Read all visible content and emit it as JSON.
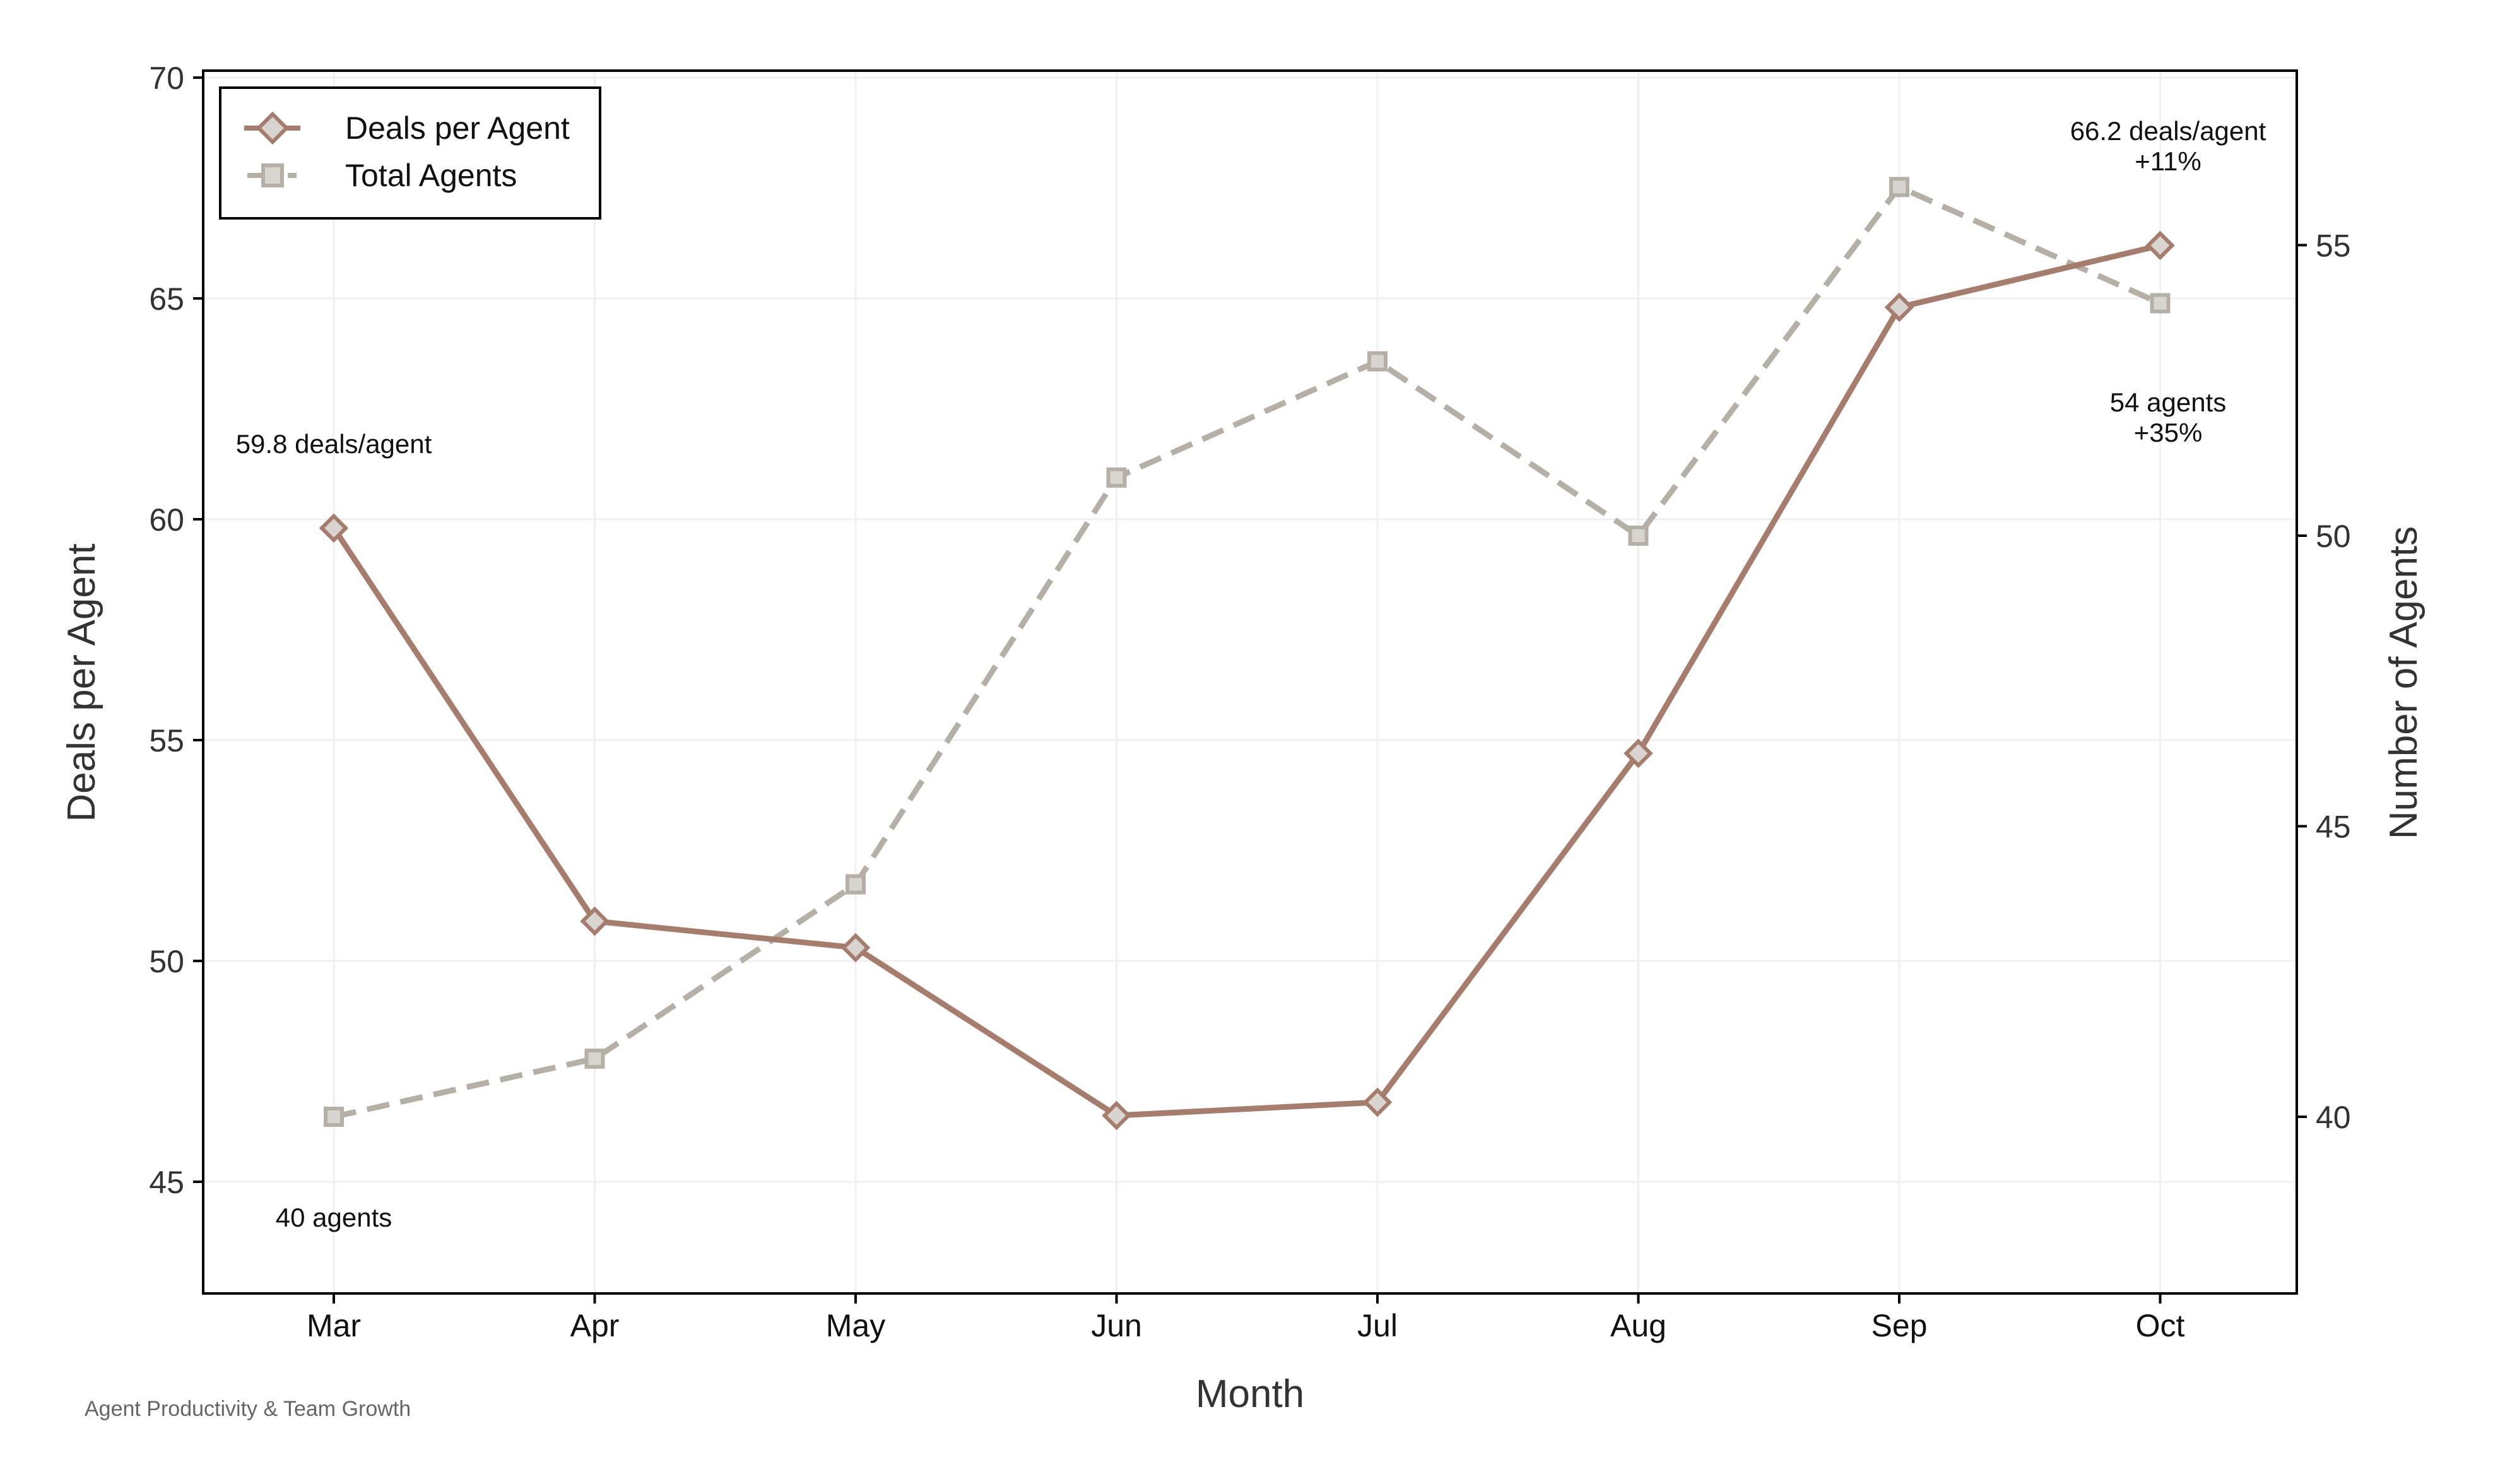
{
  "chart_data": {
    "type": "line",
    "title": "Agent Productivity & Team Growth",
    "xlabel": "Month",
    "ylabel": "Deals per Agent",
    "y2label": "Number of Agents",
    "categories": [
      "Mar",
      "Apr",
      "May",
      "Jun",
      "Jul",
      "Aug",
      "Sep",
      "Oct"
    ],
    "series": [
      {
        "name": "Deals per Agent",
        "axis": "left",
        "values": [
          59.8,
          50.9,
          50.3,
          46.5,
          46.8,
          54.7,
          64.8,
          66.2
        ],
        "color": "#a67c6d",
        "marker": "diamond",
        "line_style": "solid"
      },
      {
        "name": "Total Agents",
        "axis": "right",
        "values": [
          40,
          41,
          44,
          51,
          53,
          50,
          56,
          54
        ],
        "color": "#b5afa5",
        "marker": "square",
        "line_style": "dashed"
      }
    ],
    "ylim": [
      42.5,
      70.2
    ],
    "y2lim": [
      37.0,
      58.0
    ],
    "yticks": [
      45,
      50,
      55,
      60,
      65,
      70
    ],
    "y2ticks": [
      40,
      45,
      50,
      55
    ],
    "grid": true,
    "legend_position": "upper left",
    "annotations": [
      {
        "text": "59.8 deals/agent",
        "x": "Mar",
        "series": "Deals per Agent"
      },
      {
        "text": "40 agents",
        "x": "Mar",
        "series": "Total Agents"
      },
      {
        "text": "66.2 deals/agent",
        "sub": "+11%",
        "x": "Oct",
        "series": "Deals per Agent"
      },
      {
        "text": "54 agents",
        "sub": "+35%",
        "x": "Oct",
        "series": "Total Agents"
      }
    ]
  },
  "labels": {
    "xlabel": "Month",
    "ylabel": "Deals per Agent",
    "y2label": "Number of Agents",
    "caption": "Agent Productivity & Team Growth",
    "legend_deals": "Deals per Agent",
    "legend_agents": "Total Agents",
    "annot_start_deals": "59.8 deals/agent",
    "annot_start_agents": "40 agents",
    "annot_end_deals": "66.2 deals/agent",
    "annot_end_deals_change": "+11%",
    "annot_end_agents": "54 agents",
    "annot_end_agents_change": "+35%"
  },
  "colors": {
    "deals": "#a67c6d",
    "agents": "#b5afa5",
    "marker_fill": "#d8d5d0",
    "grid": "#f0f0f0",
    "axis": "#000000"
  }
}
